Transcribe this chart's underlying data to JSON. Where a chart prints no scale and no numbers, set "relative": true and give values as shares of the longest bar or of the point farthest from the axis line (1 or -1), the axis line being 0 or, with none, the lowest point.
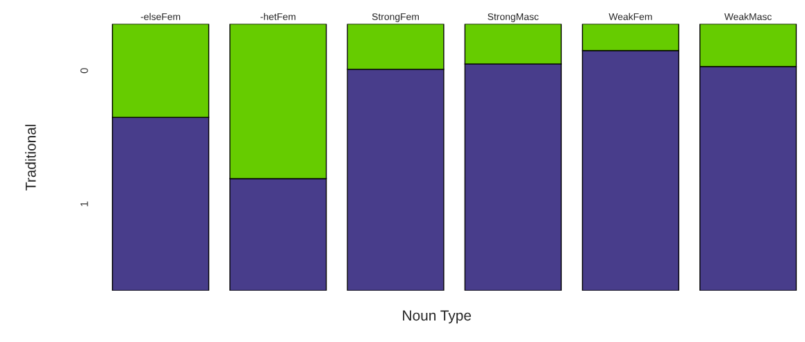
{
  "chart_data": {
    "type": "bar",
    "stacked": true,
    "relative": true,
    "xlabel": "Noun Type",
    "ylabel": "Traditional",
    "categories": [
      "-elseFem",
      "-hetFem",
      "StrongFem",
      "StrongMasc",
      "WeakFem",
      "WeakMasc"
    ],
    "series": [
      {
        "name": "1",
        "color": "#483d8b",
        "values": [
          0.65,
          0.42,
          0.83,
          0.85,
          0.9,
          0.84
        ]
      },
      {
        "name": "0",
        "color": "#66cc00",
        "values": [
          0.35,
          0.58,
          0.17,
          0.15,
          0.1,
          0.16
        ]
      }
    ],
    "grid": false,
    "legend": false
  }
}
